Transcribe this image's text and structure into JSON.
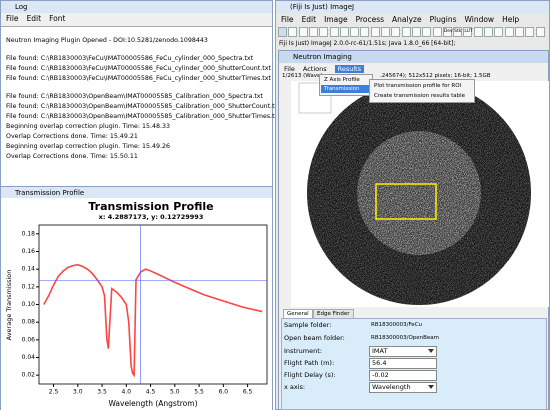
{
  "log": {
    "title": "Log",
    "menu": [
      "File",
      "Edit",
      "Font"
    ],
    "groups": [
      [
        "Neutron Imaging Plugin Opened - DOI:10.5281/zenodo.1098443"
      ],
      [
        "File found:  C:\\RB1830003\\FeCu\\IMAT00005586_FeCu_cylinder_000_Spectra.txt",
        "File found:  C:\\RB1830003\\FeCu\\IMAT00005586_FeCu_cylinder_000_ShutterCount.txt",
        "File found:  C:\\RB1830003\\FeCu\\IMAT00005586_FeCu_cylinder_000_ShutterTimes.txt"
      ],
      [
        "File found:  C:\\RB1830003\\OpenBeam\\IMAT00005585_Calibration_000_Spectra.txt",
        "File found:  C:\\RB1830003\\OpenBeam\\IMAT00005585_Calibration_000_ShutterCount.txt",
        "File found:  C:\\RB1830003\\OpenBeam\\IMAT00005585_Calibration_000_ShutterTimes.txt",
        "Beginning overlap correction plugin.  Time: 15.48.33",
        "Overlap Corrections done.  Time: 15.49.21",
        "Beginning overlap correction plugin.  Time: 15.49.26",
        "Overlap Corrections done.  Time: 15.50.11"
      ]
    ]
  },
  "profile_window": {
    "title": "Transmission Profile"
  },
  "chart_data": {
    "type": "line",
    "title": "Transmission Profile",
    "subtitle": "x: 4.2887173, y: 0.12729993",
    "xlabel": "Wavelength (Angstrom)",
    "ylabel": "Average Transmission",
    "x": [
      2.3,
      2.4,
      2.5,
      2.6,
      2.7,
      2.8,
      2.9,
      3.0,
      3.1,
      3.2,
      3.3,
      3.4,
      3.5,
      3.55,
      3.6,
      3.63,
      3.66,
      3.7,
      3.8,
      3.9,
      4.0,
      4.05,
      4.1,
      4.13,
      4.16,
      4.2,
      4.3,
      4.4,
      4.5,
      4.7,
      5.0,
      5.3,
      5.6,
      6.0,
      6.4,
      6.8
    ],
    "values": [
      0.1,
      0.11,
      0.122,
      0.132,
      0.138,
      0.142,
      0.144,
      0.145,
      0.143,
      0.14,
      0.135,
      0.128,
      0.12,
      0.11,
      0.06,
      0.05,
      0.08,
      0.118,
      0.114,
      0.108,
      0.1,
      0.08,
      0.03,
      0.022,
      0.02,
      0.128,
      0.137,
      0.14,
      0.138,
      0.133,
      0.125,
      0.118,
      0.111,
      0.104,
      0.097,
      0.092
    ],
    "color": "#ff4444",
    "xlim": [
      2.2,
      6.9
    ],
    "ylim": [
      0.01,
      0.19
    ],
    "xticks": [
      2.5,
      {
        "value": 3,
        "label": "3.0"
      },
      3.5,
      {
        "value": 4,
        "label": "4.0"
      },
      4.5,
      {
        "value": 5,
        "label": "5.0"
      },
      5.5,
      {
        "value": 6,
        "label": "6.0"
      },
      6.5
    ],
    "yticks": [
      0.02,
      0.04,
      0.06,
      0.08,
      {
        "value": 0.1,
        "label": "0.10"
      },
      0.12,
      0.14,
      0.16,
      0.18
    ],
    "cursor": {
      "x": 4.2887173,
      "y": 0.12729993
    },
    "cursor_color": "#4a5cff"
  },
  "imagej": {
    "title": "(Fiji Is Just) ImageJ",
    "menu": [
      "File",
      "Edit",
      "Image",
      "Process",
      "Analyze",
      "Plugins",
      "Window",
      "Help"
    ],
    "toolbar_labels": [
      "Dev",
      "Stk",
      "LUT"
    ],
    "status": "Fiji Is Just) ImageJ 2.0.0-rc-61/1.51s; Java 1.8.0_66 [64-bit];"
  },
  "neutron": {
    "title": "Neutron Imaging",
    "menu": [
      "File",
      "Actions",
      "Results"
    ],
    "info": [
      "1/2613 (Wavel",
      ".245674); 512x512 pixels; 16-bit; 1.5GB"
    ],
    "results_menu": [
      "Z Axis Profile",
      "Transmission"
    ],
    "transmission_submenu": [
      "Plot transmission profile for ROI",
      "Create transmission results table"
    ],
    "tabs": [
      "General",
      "Edge Finder"
    ],
    "folders": [
      {
        "label": "Sample folder:",
        "value": "RB18300003/FeCu"
      },
      {
        "label": "Open beam folder:",
        "value": "RB18300003/OpenBeam"
      }
    ],
    "controls": [
      {
        "label": "Instrument:",
        "value": "IMAT"
      },
      {
        "label": "Flight Path (m):",
        "value": "56.4"
      },
      {
        "label": "Flight Delay (s):",
        "value": "-0.02"
      },
      {
        "label": "x axis:",
        "value": "Wavelength"
      }
    ]
  }
}
